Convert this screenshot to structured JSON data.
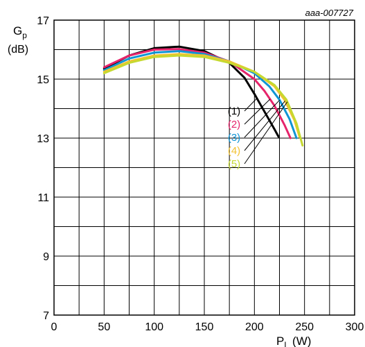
{
  "chart_data": {
    "type": "line",
    "figure_code": "aaa-007727",
    "ylabel": {
      "main": "G",
      "sub": "p",
      "unit": "(dB)"
    },
    "xlabel": {
      "main": "P",
      "sub": "L",
      "unit": "(W)"
    },
    "xlim": [
      0,
      300
    ],
    "ylim": [
      7,
      17
    ],
    "x_ticks": [
      0,
      50,
      100,
      150,
      200,
      250,
      300
    ],
    "y_ticks": [
      7,
      9,
      11,
      13,
      15,
      17
    ],
    "x_grid_step": 25,
    "y_grid_step": 1,
    "grid": true,
    "series": [
      {
        "name": "(1)",
        "color": "#000000",
        "x": [
          50,
          75,
          100,
          125,
          150,
          175,
          190,
          200,
          210,
          220,
          224
        ],
        "y": [
          15.35,
          15.8,
          16.05,
          16.1,
          15.95,
          15.55,
          15.05,
          14.5,
          13.9,
          13.3,
          13.05
        ]
      },
      {
        "name": "(2)",
        "color": "#e5246b",
        "x": [
          50,
          75,
          100,
          125,
          150,
          175,
          200,
          210,
          220,
          230,
          236
        ],
        "y": [
          15.4,
          15.8,
          16.0,
          16.02,
          15.9,
          15.6,
          15.0,
          14.6,
          14.1,
          13.45,
          13.0
        ]
      },
      {
        "name": "(3)",
        "color": "#0f95d4",
        "x": [
          50,
          75,
          100,
          125,
          150,
          175,
          200,
          215,
          225,
          235,
          242
        ],
        "y": [
          15.3,
          15.7,
          15.9,
          15.95,
          15.85,
          15.6,
          15.2,
          14.75,
          14.3,
          13.65,
          13.0
        ]
      },
      {
        "name": "(4)",
        "color": "#f1c232",
        "x": [
          50,
          75,
          100,
          125,
          150,
          175,
          200,
          220,
          230,
          240,
          245
        ],
        "y": [
          15.25,
          15.6,
          15.8,
          15.85,
          15.8,
          15.6,
          15.25,
          14.75,
          14.3,
          13.6,
          13.05
        ]
      },
      {
        "name": "(5)",
        "color": "#c5d930",
        "x": [
          50,
          75,
          100,
          125,
          150,
          175,
          200,
          220,
          232,
          242,
          248
        ],
        "y": [
          15.2,
          15.55,
          15.75,
          15.8,
          15.75,
          15.55,
          15.25,
          14.8,
          14.3,
          13.5,
          12.75
        ]
      }
    ]
  }
}
